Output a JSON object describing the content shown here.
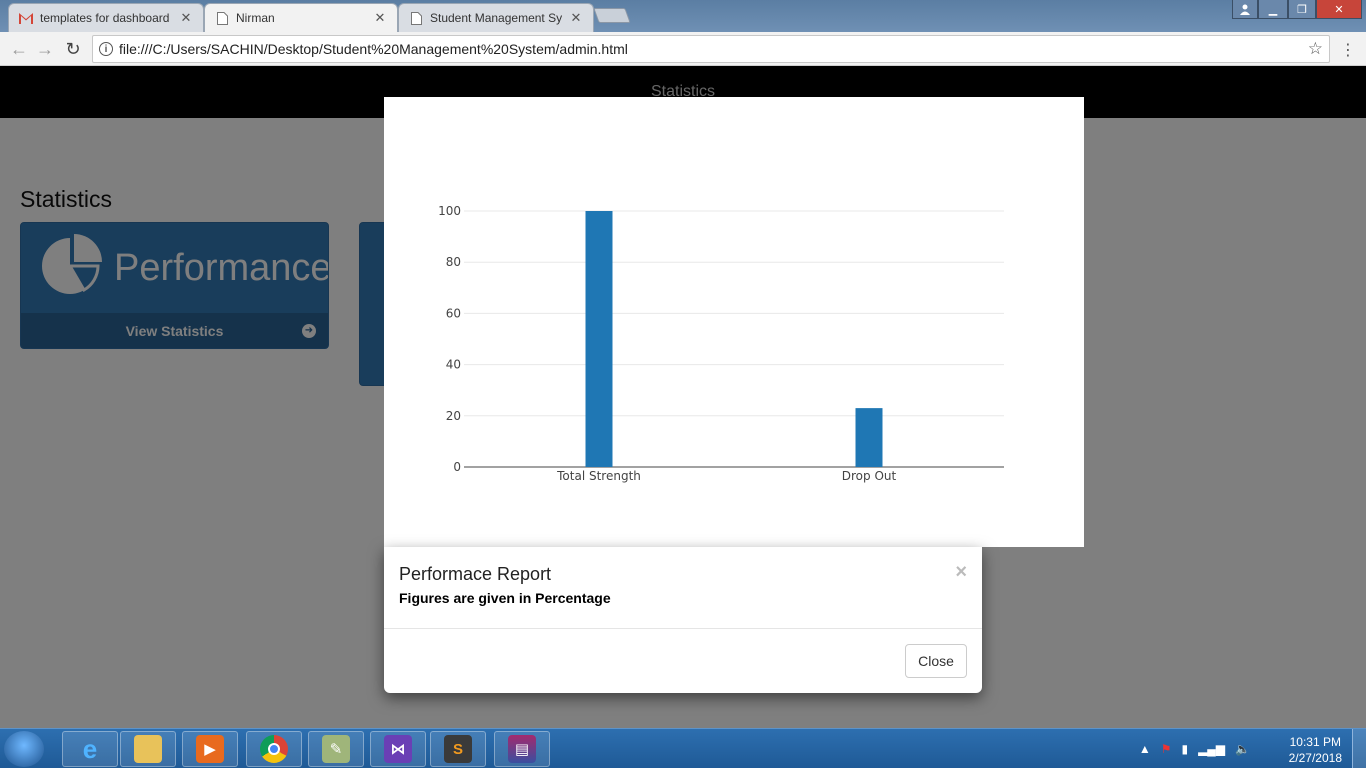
{
  "browser": {
    "tabs": [
      {
        "title": "templates for dashboard",
        "icon": "gmail-icon",
        "active": false
      },
      {
        "title": "Nirman",
        "icon": "page-icon",
        "active": true
      },
      {
        "title": "Student Management Sy",
        "icon": "page-icon",
        "active": false
      }
    ],
    "url": "file:///C:/Users/SACHIN/Desktop/Student%20Management%20System/admin.html"
  },
  "page": {
    "header_title": "Statistics",
    "section_title": "Statistics",
    "cards": [
      {
        "label": "Performance",
        "footer": "View Statistics",
        "icon": "pie-chart-icon"
      }
    ]
  },
  "modal": {
    "title": "Performace Report",
    "subtitle": "Figures are given in Percentage",
    "close_x": "×",
    "close_label": "Close"
  },
  "chart_data": {
    "type": "bar",
    "categories": [
      "Total Strength",
      "Drop Out"
    ],
    "values": [
      100,
      23
    ],
    "ylim": [
      0,
      100
    ],
    "yticks": [
      0,
      20,
      40,
      60,
      80,
      100
    ],
    "grid": true,
    "color": "#1f77b4"
  },
  "taskbar": {
    "time": "10:31 PM",
    "date": "2/27/2018",
    "apps": [
      "internet-explorer-icon",
      "file-explorer-icon",
      "media-player-icon",
      "chrome-icon",
      "tools-icon",
      "visual-studio-icon",
      "sublime-text-icon",
      "winrar-icon"
    ]
  }
}
